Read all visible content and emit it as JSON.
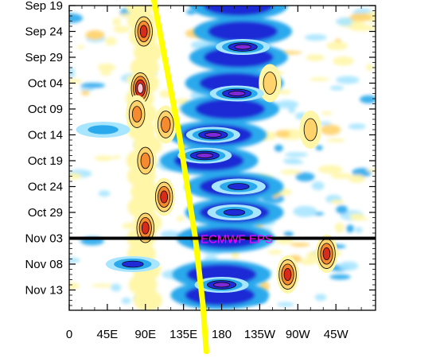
{
  "chart_data": {
    "type": "heatmap",
    "x_tick_labels": [
      "0",
      "45E",
      "90E",
      "135E",
      "180",
      "135W",
      "90W",
      "45W"
    ],
    "x_tick_values_deg_east": [
      0,
      45,
      90,
      135,
      180,
      225,
      270,
      315
    ],
    "x_range_deg_east": [
      0,
      360
    ],
    "y_tick_labels": [
      "Sep 19",
      "Sep 24",
      "Sep 29",
      "Oct 04",
      "Oct 09",
      "Oct 14",
      "Oct 19",
      "Oct 24",
      "Oct 29",
      "Nov 03",
      "Nov 08",
      "Nov 13"
    ],
    "y_range": [
      "Sep 19",
      "Nov 16"
    ],
    "y_direction": "time increases downward",
    "forecast_start": "Nov 03",
    "forecast_label": "ECMWF EPS",
    "colors": {
      "strong_negative": "#7d2ad6",
      "negative": "#1e2bd6",
      "weak_negative": "#2aa9ec",
      "slight_negative": "#a8e6ff",
      "slight_positive": "#fff6a8",
      "weak_positive": "#ffd36b",
      "positive": "#f58a2f",
      "strong_positive": "#d92b1c",
      "extreme_positive": "#f7c6d5",
      "forecast_line": "#000000",
      "propagation_line": "#ffff00",
      "label": "#ff00ff"
    },
    "positive_anomaly_centers": [
      {
        "lon": 88,
        "date": "Sep 24",
        "level": 3
      },
      {
        "lon": 84,
        "date": "Oct 05",
        "level": 4
      },
      {
        "lon": 80,
        "date": "Oct 10",
        "level": 2
      },
      {
        "lon": 114,
        "date": "Oct 12",
        "level": 2
      },
      {
        "lon": 90,
        "date": "Oct 19",
        "level": 2
      },
      {
        "lon": 112,
        "date": "Oct 26",
        "level": 3
      },
      {
        "lon": 90,
        "date": "Nov 01",
        "level": 3
      },
      {
        "lon": 258,
        "date": "Nov 10",
        "level": 3
      },
      {
        "lon": 304,
        "date": "Nov 06",
        "level": 3
      },
      {
        "lon": 237,
        "date": "Oct 04",
        "level": 1
      },
      {
        "lon": 285,
        "date": "Oct 13",
        "level": 1
      }
    ],
    "negative_anomaly_centers": [
      {
        "lon": 205,
        "date": "Sep 27",
        "level": 3
      },
      {
        "lon": 198,
        "date": "Oct 06",
        "level": 3
      },
      {
        "lon": 170,
        "date": "Oct 14",
        "level": 3
      },
      {
        "lon": 160,
        "date": "Oct 18",
        "level": 3
      },
      {
        "lon": 200,
        "date": "Oct 24",
        "level": 2
      },
      {
        "lon": 195,
        "date": "Oct 29",
        "level": 2
      },
      {
        "lon": 180,
        "date": "Nov 12",
        "level": 3
      },
      {
        "lon": 75,
        "date": "Nov 08",
        "level": 2
      },
      {
        "lon": 40,
        "date": "Oct 13",
        "level": 1
      }
    ],
    "propagation_line": {
      "points": [
        {
          "lon": 100,
          "date": "Sep 19"
        },
        {
          "lon": 130,
          "date": "Oct 14"
        },
        {
          "lon": 149,
          "date": "Nov 03"
        },
        {
          "lon": 158,
          "date": "Nov 16"
        }
      ]
    }
  }
}
